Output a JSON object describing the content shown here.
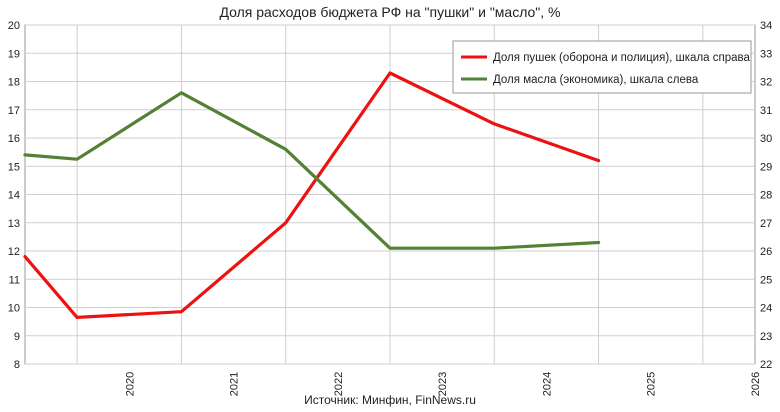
{
  "chart_data": {
    "type": "line",
    "title": "Доля расходов бюджета РФ на \"пушки\" и \"масло\", %",
    "source": "Источник: Минфин, FinNews.ru",
    "x": [
      2019.5,
      2020,
      2021,
      2022,
      2023,
      2024,
      2025
    ],
    "x_tick_labels": [
      "2020",
      "2021",
      "2022",
      "2023",
      "2024",
      "2025",
      "2026"
    ],
    "xlim": [
      2019.5,
      2026.5
    ],
    "left_axis": {
      "ylim": [
        8,
        20
      ],
      "ticks": [
        8,
        9,
        10,
        11,
        12,
        13,
        14,
        15,
        16,
        17,
        18,
        19,
        20
      ]
    },
    "right_axis": {
      "ylim": [
        22,
        34
      ],
      "ticks": [
        22,
        23,
        24,
        25,
        26,
        27,
        28,
        29,
        30,
        31,
        32,
        33,
        34
      ]
    },
    "grid": true,
    "legend_position": "top-right",
    "series": [
      {
        "name": "Доля пушек (оборона и полиция), шкала справа",
        "axis": "right",
        "color": "#ee1111",
        "values": [
          25.8,
          23.65,
          23.85,
          27.0,
          32.3,
          30.5,
          29.2
        ]
      },
      {
        "name": "Доля масла (экономика), шкала слева",
        "axis": "left",
        "color": "#538135",
        "values": [
          15.4,
          15.25,
          17.6,
          15.6,
          12.1,
          12.1,
          12.3
        ]
      }
    ]
  }
}
